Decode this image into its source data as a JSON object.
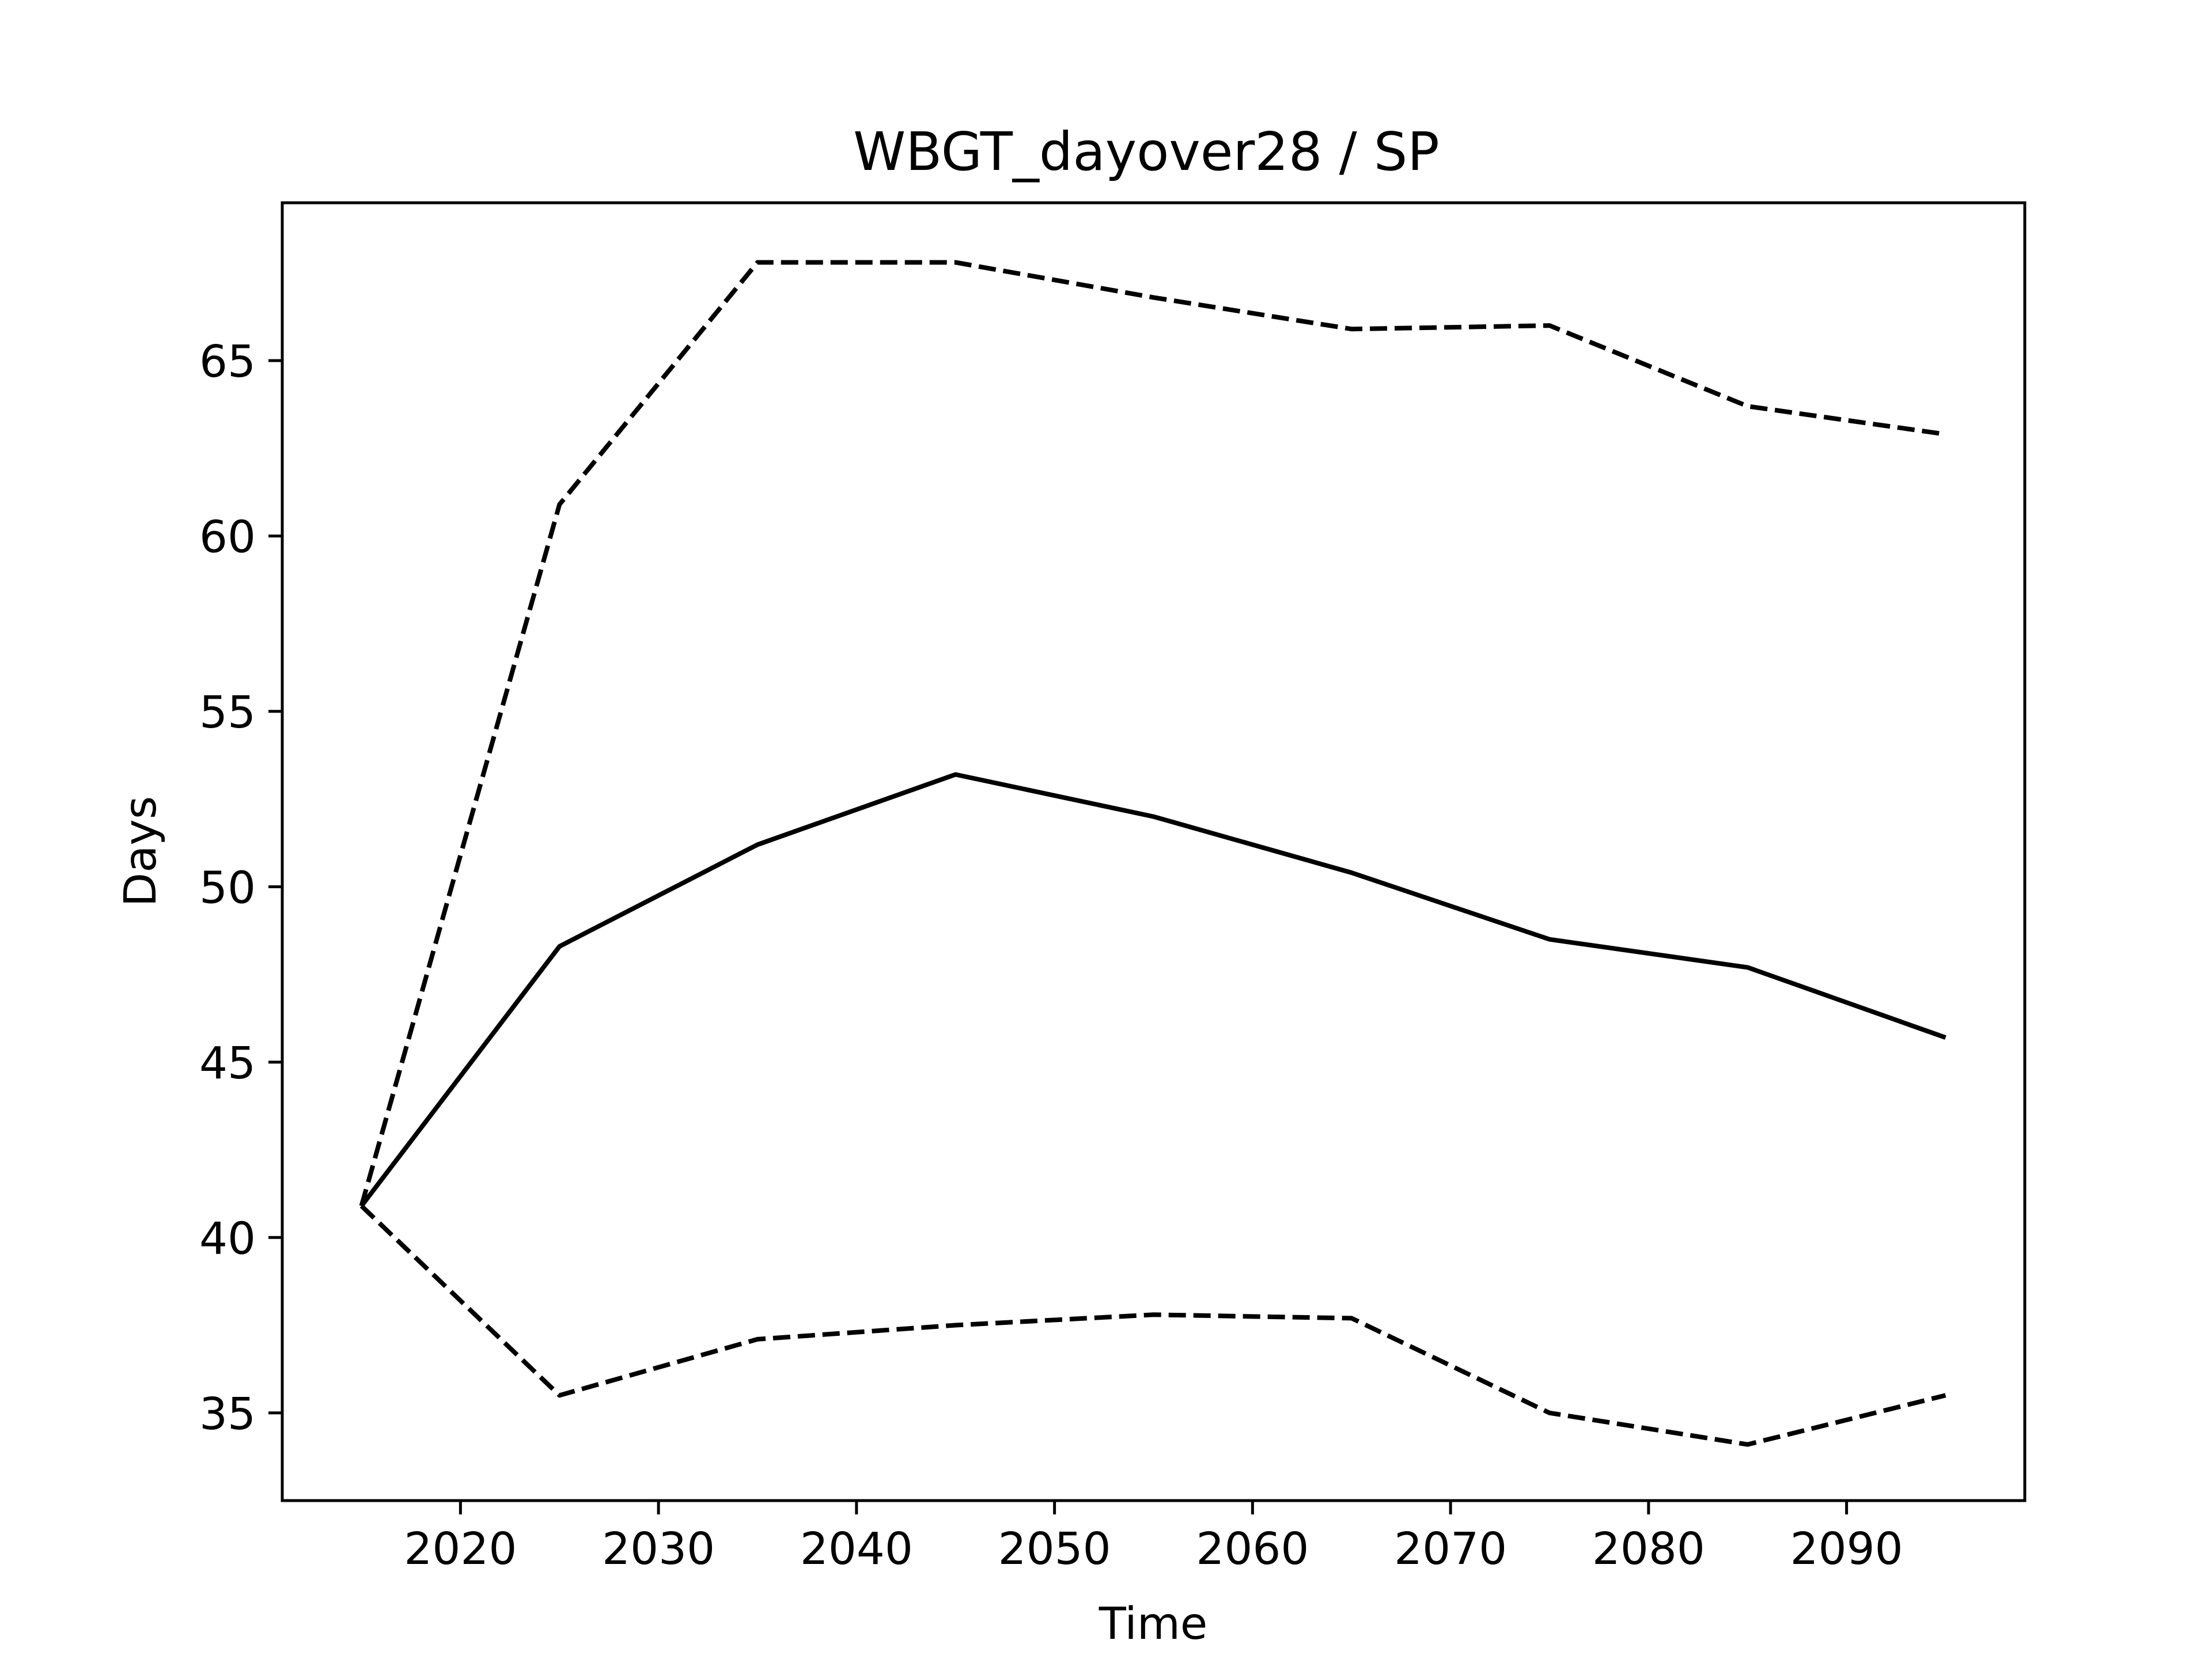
{
  "chart_data": {
    "type": "line",
    "title": "WBGT_dayover28 / SP",
    "xlabel": "Time",
    "ylabel": "Days",
    "x": [
      2015,
      2025,
      2035,
      2045,
      2055,
      2065,
      2075,
      2085,
      2095
    ],
    "xlim": [
      2011,
      2099
    ],
    "ylim": [
      32.5,
      69.5
    ],
    "xticks": [
      2020,
      2030,
      2040,
      2050,
      2060,
      2070,
      2080,
      2090
    ],
    "yticks": [
      35,
      40,
      45,
      50,
      55,
      60,
      65
    ],
    "grid": false,
    "legend": "none",
    "series": [
      {
        "style": "solid",
        "color": "#000000",
        "values": [
          40.9,
          48.3,
          51.2,
          53.2,
          52.0,
          50.4,
          48.5,
          47.7,
          45.7
        ]
      },
      {
        "style": "dashed",
        "color": "#000000",
        "values": [
          40.9,
          60.9,
          67.8,
          67.8,
          66.8,
          65.9,
          66.0,
          63.7,
          62.9
        ]
      },
      {
        "style": "dashed",
        "color": "#000000",
        "values": [
          40.9,
          35.5,
          37.1,
          37.5,
          37.8,
          37.7,
          35.0,
          34.1,
          35.5
        ]
      }
    ]
  }
}
